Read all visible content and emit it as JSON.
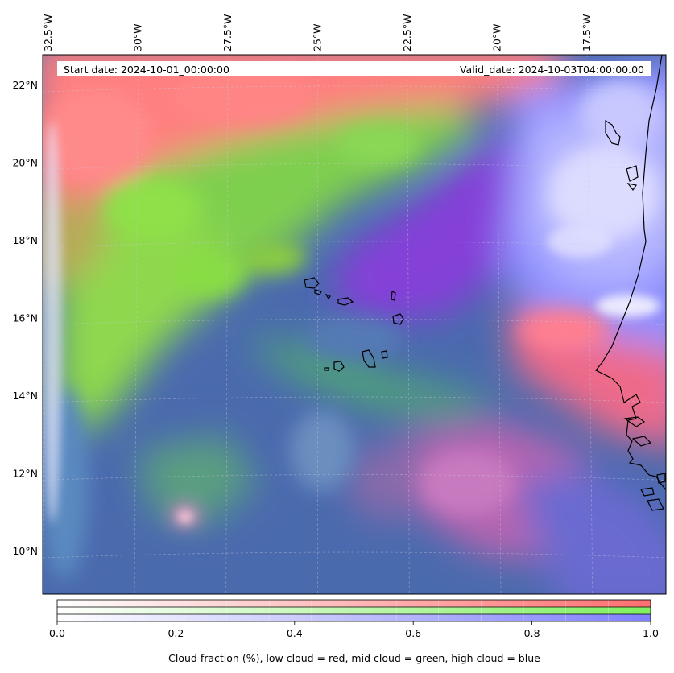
{
  "map": {
    "start_label": "Start date: 2024-10-01_00:00:00",
    "valid_label": "Valid_date: 2024-10-03T04:00:00.00",
    "lon_labels": [
      "32.5°W",
      "30°W",
      "27.5°W",
      "25°W",
      "22.5°W",
      "20°W",
      "17.5°W"
    ],
    "lat_labels": [
      "22°N",
      "20°N",
      "18°N",
      "16°N",
      "14°N",
      "12°N",
      "10°N"
    ],
    "lon_values": [
      -32.5,
      -30,
      -27.5,
      -25,
      -22.5,
      -20,
      -17.5
    ],
    "lat_values": [
      22,
      20,
      18,
      16,
      14,
      12,
      10
    ],
    "colors": {
      "low_cloud": "#ff7f7f",
      "mid_cloud": "#80ee60",
      "high_cloud": "#7f7fff",
      "clear_sky": "#4a6aae",
      "coastline": "#000000"
    }
  },
  "colorbar": {
    "ticks": [
      "0.0",
      "0.2",
      "0.4",
      "0.6",
      "0.8",
      "1.0"
    ],
    "tick_values": [
      0.0,
      0.2,
      0.4,
      0.6,
      0.8,
      1.0
    ],
    "caption": "Cloud fraction (%), low cloud = red, mid cloud = green, high cloud = blue",
    "bands": [
      {
        "name": "low cloud",
        "color": "#ff6f6f"
      },
      {
        "name": "mid cloud",
        "color": "#7fef5f"
      },
      {
        "name": "high cloud",
        "color": "#7f7fff"
      }
    ]
  }
}
